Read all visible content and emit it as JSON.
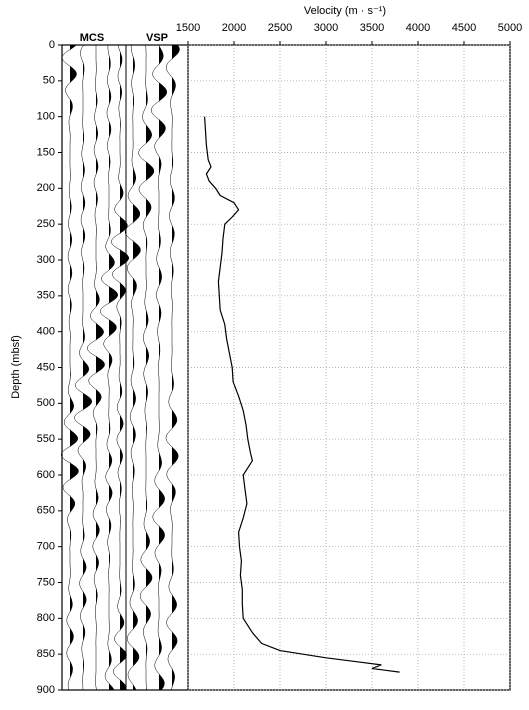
{
  "chart_data": {
    "type": "line",
    "x_label": "Velocity (m · s⁻¹)",
    "y_label": "Depth (mbsf)",
    "panels": [
      "MCS",
      "VSP"
    ],
    "depths": [
      100,
      120,
      140,
      160,
      170,
      180,
      190,
      200,
      210,
      220,
      230,
      240,
      250,
      270,
      290,
      310,
      330,
      350,
      370,
      390,
      410,
      430,
      450,
      470,
      490,
      510,
      530,
      550,
      570,
      580,
      600,
      620,
      640,
      660,
      680,
      700,
      720,
      740,
      760,
      780,
      800,
      820,
      835,
      845,
      855,
      860,
      865,
      870,
      875
    ],
    "values": [
      1680,
      1690,
      1700,
      1720,
      1750,
      1700,
      1730,
      1800,
      1850,
      2000,
      2050,
      1980,
      1900,
      1880,
      1870,
      1850,
      1830,
      1840,
      1850,
      1900,
      1920,
      1950,
      1980,
      1990,
      2050,
      2100,
      2130,
      2150,
      2180,
      2200,
      2100,
      2120,
      2140,
      2100,
      2050,
      2060,
      2080,
      2070,
      2090,
      2090,
      2100,
      2200,
      2300,
      2500,
      3000,
      3300,
      3600,
      3500,
      3800
    ],
    "color": "#000000",
    "xlim": [
      1500,
      5000
    ],
    "xticks": [
      1500,
      2000,
      2500,
      3000,
      3500,
      4000,
      4500,
      5000
    ],
    "ylim": [
      0,
      900
    ],
    "yticks": [
      0,
      50,
      100,
      150,
      200,
      250,
      300,
      350,
      400,
      450,
      500,
      550,
      600,
      650,
      700,
      750,
      800,
      850,
      900
    ],
    "grid": true
  }
}
